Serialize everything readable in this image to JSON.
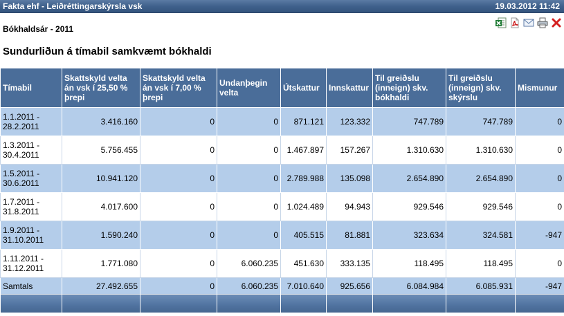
{
  "window": {
    "title": "Fakta ehf - Leiðréttingarskýrsla vsk",
    "datetime": "19.03.2012 11:42"
  },
  "fiscal_year_label": "Bókhaldsár - 2011",
  "report_heading": "Sundurliðun á tímabil samkvæmt bókhaldi",
  "toolbar": {
    "icons": [
      "excel-icon",
      "pdf-icon",
      "email-icon",
      "print-icon",
      "close-icon"
    ],
    "colors": {
      "excel": "#1e7b34",
      "pdf": "#cc1f1f",
      "close": "#d42020"
    }
  },
  "table": {
    "headers": [
      "Tímabil",
      "Skattskyld velta án vsk í 25,50 % þrepi",
      "Skattskyld velta án vsk í 7,00 % þrepi",
      "Undanþegin velta",
      "Útskattur",
      "Innskattur",
      "Til greiðslu (inneign) skv. bókhaldi",
      "Til greiðslu (inneign) skv. skýrslu",
      "Mismunur"
    ],
    "rows": [
      [
        "1.1.2011 - 28.2.2011",
        "3.416.160",
        "0",
        "0",
        "871.121",
        "123.332",
        "747.789",
        "747.789",
        "0"
      ],
      [
        "1.3.2011 - 30.4.2011",
        "5.756.455",
        "0",
        "0",
        "1.467.897",
        "157.267",
        "1.310.630",
        "1.310.630",
        "0"
      ],
      [
        "1.5.2011 - 30.6.2011",
        "10.941.120",
        "0",
        "0",
        "2.789.988",
        "135.098",
        "2.654.890",
        "2.654.890",
        "0"
      ],
      [
        "1.7.2011 - 31.8.2011",
        "4.017.600",
        "0",
        "0",
        "1.024.489",
        "94.943",
        "929.546",
        "929.546",
        "0"
      ],
      [
        "1.9.2011 - 31.10.2011",
        "1.590.240",
        "0",
        "0",
        "405.515",
        "81.881",
        "323.634",
        "324.581",
        "-947"
      ],
      [
        "1.11.2011 - 31.12.2011",
        "1.771.080",
        "0",
        "6.060.235",
        "451.630",
        "333.135",
        "118.495",
        "118.495",
        "0"
      ]
    ],
    "totals": [
      "Samtals",
      "27.492.655",
      "0",
      "6.060.235",
      "7.010.640",
      "925.656",
      "6.084.984",
      "6.085.931",
      "-947"
    ]
  }
}
